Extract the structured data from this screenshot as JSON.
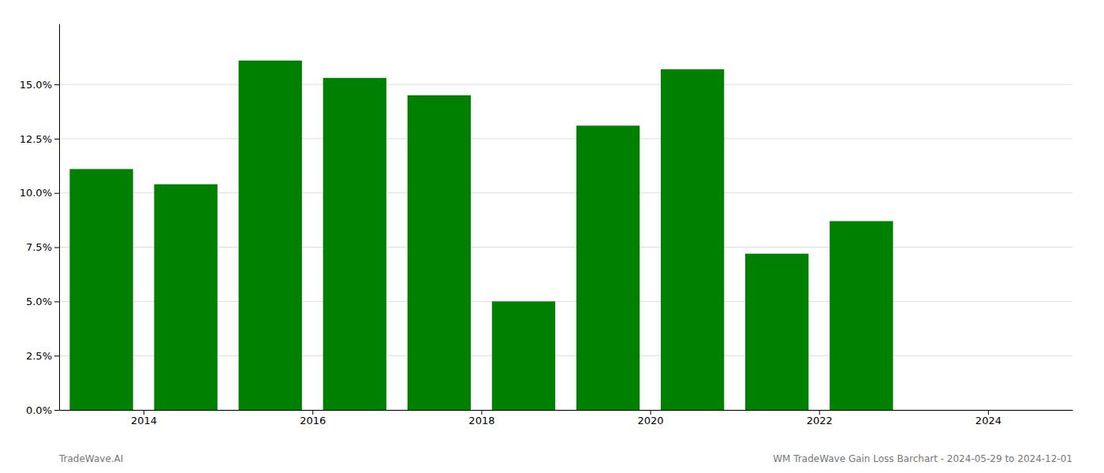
{
  "chart_data": {
    "type": "bar",
    "x": [
      2013.5,
      2014.5,
      2015.5,
      2016.5,
      2017.5,
      2018.5,
      2019.5,
      2020.5,
      2021.5,
      2022.5
    ],
    "values": [
      0.111,
      0.104,
      0.161,
      0.153,
      0.145,
      0.05,
      0.131,
      0.157,
      0.072,
      0.087
    ],
    "color": "#008000",
    "xlim": [
      2013.0,
      2025.0
    ],
    "xticks": [
      2014,
      2016,
      2018,
      2020,
      2022,
      2024
    ],
    "ylim": [
      0,
      0.178
    ],
    "yticks": [
      {
        "value": 0.0,
        "label": "0.0%"
      },
      {
        "value": 0.025,
        "label": "2.5%"
      },
      {
        "value": 0.05,
        "label": "5.0%"
      },
      {
        "value": 0.075,
        "label": "7.5%"
      },
      {
        "value": 0.1,
        "label": "10.0%"
      },
      {
        "value": 0.125,
        "label": "12.5%"
      },
      {
        "value": 0.15,
        "label": "15.0%"
      }
    ],
    "grid": true,
    "annotations": [
      "TradeWave.AI",
      "WM TradeWave Gain Loss Barchart - 2024-05-29 to 2024-12-01"
    ]
  }
}
